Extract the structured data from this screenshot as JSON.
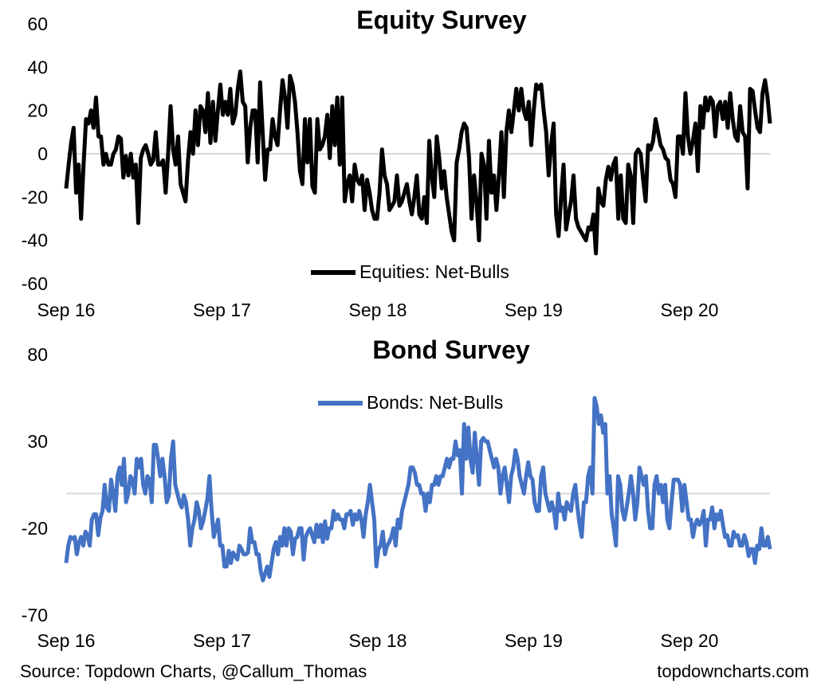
{
  "footer": {
    "source": "Source: Topdown Charts, @Callum_Thomas",
    "site": "topdowncharts.com"
  },
  "colors": {
    "equity_line": "#000000",
    "bond_line": "#4472C4",
    "zero_line": "#D9D9D9"
  },
  "chart_data": [
    {
      "type": "line",
      "title": "Equity Survey",
      "xlabel": "",
      "ylabel": "",
      "ylim": [
        -60,
        60
      ],
      "yticks": [
        60,
        40,
        20,
        0,
        -20,
        -40,
        -60
      ],
      "xticks": [
        "Sep 16",
        "Sep 17",
        "Sep 18",
        "Sep 19",
        "Sep 20"
      ],
      "legend_position": "bottom-center",
      "grid": false,
      "series": [
        {
          "name": "Equities: Net-Bulls",
          "values": [
            -16,
            -5,
            5,
            12,
            -18,
            -5,
            -30,
            -5,
            16,
            14,
            20,
            12,
            26,
            8,
            8,
            -5,
            0,
            -5,
            -5,
            0,
            2,
            8,
            7,
            -11,
            -1,
            -10,
            0,
            -11,
            -5,
            -32,
            -2,
            2,
            4,
            0,
            -5,
            -3,
            10,
            -5,
            -5,
            -3,
            -18,
            0,
            22,
            2,
            -5,
            8,
            -14,
            -18,
            -22,
            -3,
            10,
            0,
            20,
            4,
            22,
            20,
            10,
            28,
            5,
            24,
            6,
            20,
            32,
            18,
            24,
            18,
            30,
            14,
            18,
            30,
            38,
            24,
            22,
            -4,
            12,
            20,
            20,
            -4,
            33,
            10,
            -12,
            2,
            2,
            16,
            8,
            4,
            20,
            34,
            26,
            12,
            36,
            32,
            24,
            10,
            -8,
            -14,
            16,
            -4,
            16,
            -15,
            -18,
            16,
            2,
            4,
            8,
            18,
            -2,
            22,
            4,
            26,
            -5,
            26,
            -22,
            -14,
            -10,
            -22,
            -5,
            -12,
            -14,
            -10,
            -26,
            -12,
            -18,
            -26,
            -30,
            -30,
            -18,
            2,
            -10,
            -14,
            -26,
            -24,
            -22,
            -10,
            -24,
            -22,
            -18,
            -14,
            -22,
            -28,
            -20,
            -10,
            -28,
            -30,
            -20,
            -32,
            6,
            -10,
            -20,
            8,
            -2,
            -16,
            -8,
            -20,
            -28,
            -36,
            -40,
            -4,
            2,
            10,
            14,
            12,
            -2,
            -30,
            -10,
            -22,
            -40,
            0,
            -5,
            -30,
            6,
            -18,
            -10,
            -26,
            -10,
            10,
            -20,
            10,
            20,
            10,
            20,
            30,
            20,
            30,
            20,
            16,
            24,
            4,
            20,
            32,
            30,
            32,
            20,
            10,
            -10,
            4,
            14,
            -28,
            -38,
            -20,
            -5,
            -35,
            -28,
            -22,
            -10,
            -30,
            -34,
            -36,
            -38,
            -40,
            -34,
            -35,
            -28,
            -46,
            -16,
            -22,
            -24,
            -12,
            -6,
            -12,
            -5,
            -2,
            -30,
            -10,
            -30,
            -32,
            -5,
            -10,
            -32,
            0,
            2,
            0,
            -12,
            -22,
            4,
            2,
            6,
            16,
            10,
            4,
            2,
            -2,
            -3,
            -12,
            -14,
            -20,
            8,
            8,
            0,
            28,
            8,
            0,
            6,
            14,
            -8,
            22,
            12,
            26,
            20,
            26,
            24,
            8,
            22,
            24,
            16,
            24,
            12,
            28,
            16,
            8,
            6,
            22,
            10,
            8,
            -16,
            30,
            29,
            20,
            12,
            10,
            28,
            34,
            26,
            14
          ]
        }
      ]
    },
    {
      "type": "line",
      "title": "Bond Survey",
      "xlabel": "",
      "ylabel": "",
      "ylim": [
        -70,
        80
      ],
      "yticks": [
        80,
        30,
        -20,
        -70
      ],
      "xticks": [
        "Sep 16",
        "Sep 17",
        "Sep 18",
        "Sep 19",
        "Sep 20"
      ],
      "legend_position": "top-center",
      "grid": false,
      "series": [
        {
          "name": "Bonds: Net-Bulls",
          "values": [
            -40,
            -30,
            -25,
            -26,
            -25,
            -35,
            -28,
            -25,
            -30,
            -22,
            -24,
            -30,
            -15,
            -12,
            -12,
            -24,
            -14,
            -10,
            5,
            -8,
            -10,
            8,
            0,
            -10,
            10,
            15,
            5,
            20,
            -5,
            0,
            10,
            8,
            0,
            20,
            15,
            20,
            5,
            0,
            10,
            8,
            -5,
            28,
            28,
            20,
            10,
            20,
            10,
            -5,
            -1,
            20,
            30,
            5,
            0,
            -5,
            -8,
            -1,
            -5,
            -15,
            -30,
            -20,
            -15,
            -5,
            -10,
            -20,
            -16,
            -10,
            -3,
            10,
            -10,
            -25,
            -20,
            -15,
            -30,
            -30,
            -42,
            -42,
            -33,
            -40,
            -34,
            -36,
            -38,
            -30,
            -32,
            -35,
            -35,
            -34,
            -20,
            -28,
            -28,
            -35,
            -35,
            -45,
            -50,
            -46,
            -42,
            -48,
            -40,
            -32,
            -28,
            -35,
            -25,
            -30,
            -20,
            -30,
            -20,
            -22,
            -35,
            -26,
            -25,
            -20,
            -20,
            -38,
            -25,
            -22,
            -20,
            -24,
            -28,
            -18,
            -25,
            -18,
            -28,
            -16,
            -26,
            -20,
            -20,
            -10,
            -15,
            -12,
            -15,
            -15,
            -20,
            -12,
            -12,
            -10,
            -18,
            -12,
            -15,
            -10,
            -15,
            -25,
            -12,
            -5,
            5,
            -5,
            -15,
            -42,
            -32,
            -30,
            -22,
            -35,
            -30,
            -28,
            -25,
            -20,
            -30,
            -15,
            -20,
            -10,
            -5,
            0,
            5,
            15,
            15,
            12,
            5,
            5,
            0,
            0,
            -10,
            0,
            -5,
            5,
            5,
            10,
            5,
            10,
            10,
            15,
            20,
            15,
            20,
            20,
            30,
            22,
            25,
            0,
            40,
            20,
            38,
            20,
            12,
            35,
            20,
            5,
            30,
            32,
            30,
            30,
            25,
            20,
            15,
            20,
            15,
            0,
            10,
            15,
            5,
            -5,
            10,
            15,
            25,
            20,
            10,
            5,
            0,
            10,
            18,
            10,
            8,
            -5,
            -10,
            -10,
            10,
            15,
            0,
            -5,
            -10,
            -5,
            -10,
            -20,
            0,
            -10,
            -8,
            -15,
            -5,
            -8,
            -10,
            0,
            5,
            -8,
            -18,
            -25,
            -5,
            -5,
            10,
            15,
            0,
            55,
            50,
            40,
            45,
            35,
            40,
            0,
            10,
            -12,
            -20,
            -30,
            10,
            5,
            -10,
            -15,
            -8,
            0,
            10,
            0,
            -15,
            -5,
            15,
            10,
            5,
            10,
            -10,
            -20,
            -20,
            5,
            10,
            0,
            5,
            -5,
            5,
            -15,
            -20,
            -5,
            8,
            8,
            8,
            5,
            -10,
            5,
            -5,
            -15,
            -15,
            -25,
            -18,
            -15,
            -18,
            -16,
            -10,
            -30,
            -15,
            -15,
            -8,
            -20,
            -12,
            -15,
            -10,
            -18,
            -25,
            -24,
            -30,
            -30,
            -22,
            -25,
            -24,
            -30,
            -30,
            -24,
            -28,
            -36,
            -32,
            -32,
            -40,
            -30,
            -32,
            -20,
            -30,
            -30,
            -25,
            -32
          ]
        }
      ]
    }
  ]
}
